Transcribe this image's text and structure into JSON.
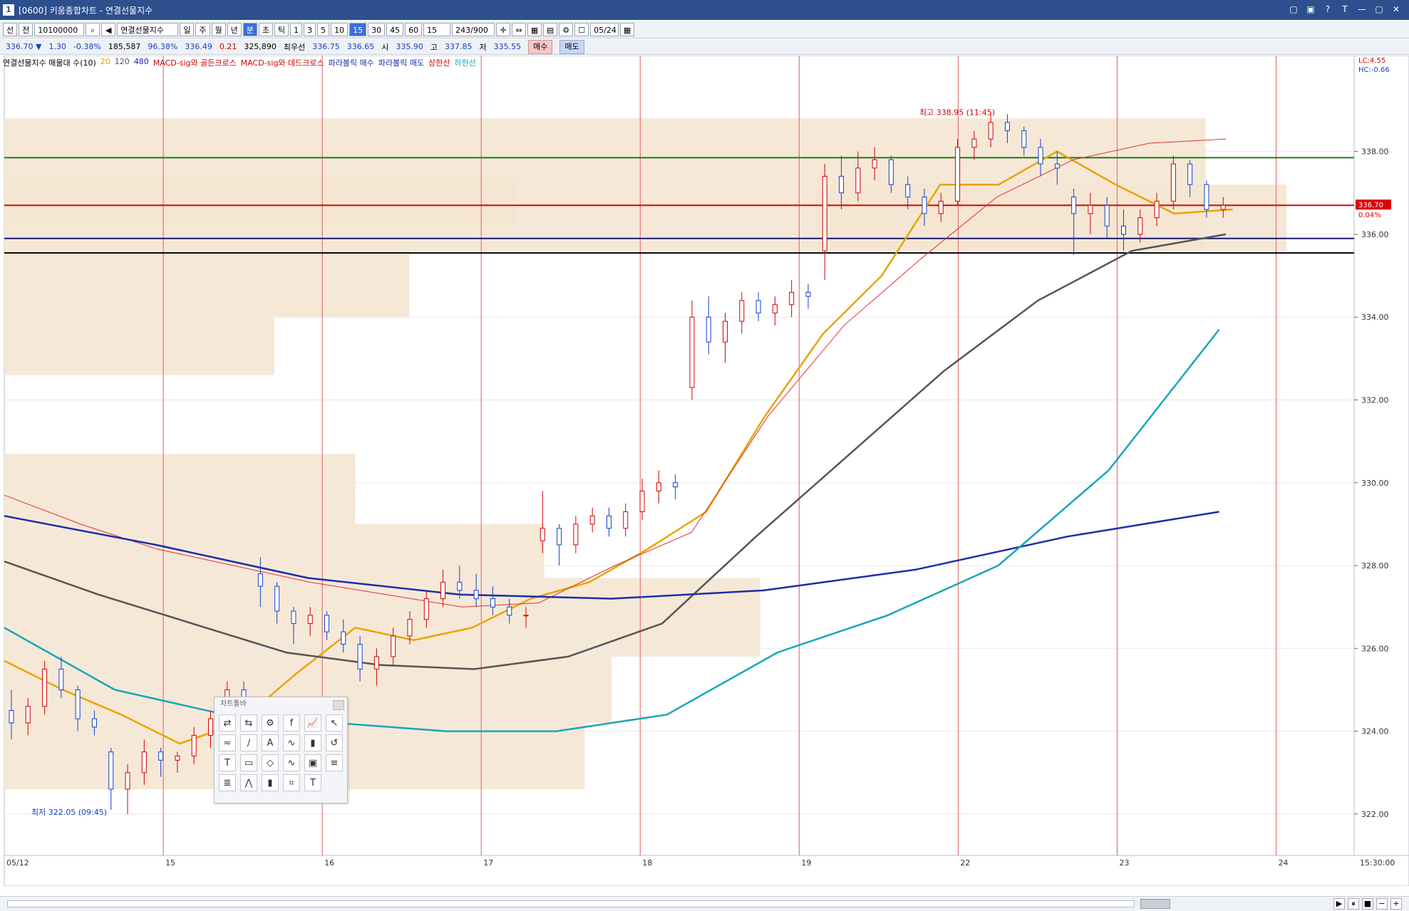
{
  "window": {
    "badge": "1",
    "title": "[0600] 키움종합차트 - 연결선물지수",
    "controls": [
      "▢",
      "▣",
      "?",
      "T",
      "—",
      "▢",
      "✕"
    ]
  },
  "toolbar": {
    "type_select": "선",
    "prev_label": "전",
    "code_value": "10100000",
    "product_name": "연결선물지수",
    "periods": [
      "일",
      "주",
      "월",
      "년",
      "분",
      "초",
      "틱"
    ],
    "selected_period": "분",
    "intervals": [
      "1",
      "3",
      "5",
      "10",
      "15",
      "30",
      "45",
      "60"
    ],
    "selected_interval": "15",
    "interval_select": "15",
    "count": "243/900",
    "date": "05/24"
  },
  "quote": {
    "price": "336.70 ▼",
    "change": "1.30",
    "change_pct": "-0.38%",
    "volume": "185,587",
    "vol_ratio": "96.38%",
    "open_prev": "336.49",
    "diff": "0.21",
    "oi": "325,890",
    "best_bid_label": "최우선",
    "best_bid": "336.75",
    "best_ask": "336.65",
    "open_label": "시",
    "open": "335.90",
    "high_label": "고",
    "high": "337.85",
    "low_label": "저",
    "low": "335.55",
    "buy_label": "매수",
    "sell_label": "매도"
  },
  "legend": {
    "ma_label": "연결선물지수 매물대 수(10)",
    "ma20": "20",
    "ma120": "120",
    "ma480": "480",
    "macd_golden": "MACD-sig와 골든크로스",
    "macd_dead": "MACD-sig와 데드크로스",
    "parabolic_buy": "파라볼릭 매수",
    "parabolic_sell": "파라볼릭 매도",
    "upper": "상한선",
    "lower": "하한선"
  },
  "right_info": {
    "lc": "LC:4.55",
    "hc": "HC:-0.66",
    "last_price": "336.70",
    "last_pct": "0.04%"
  },
  "annotations": {
    "high_text": "최고 338.95 (11:45)",
    "low_text": "최저 322.05 (09:45)"
  },
  "chart_data": {
    "type": "candlestick",
    "y_ticks": [
      "338.00",
      "336.00",
      "334.00",
      "332.00",
      "330.00",
      "328.00",
      "326.00",
      "324.00",
      "322.00"
    ],
    "ylim": [
      321.0,
      339.8
    ],
    "x_labels": [
      "05/12",
      "15",
      "16",
      "17",
      "18",
      "19",
      "22",
      "23",
      "24"
    ],
    "x_end_label": "15:30:00",
    "horizontal_lines": [
      {
        "name": "green-level",
        "value": 337.85,
        "color": "#1c7a1c"
      },
      {
        "name": "red-level",
        "value": 336.7,
        "color": "#e00000"
      },
      {
        "name": "navy-level",
        "value": 335.9,
        "color": "#1a1a6e"
      },
      {
        "name": "black-level",
        "value": 335.55,
        "color": "#000000"
      }
    ],
    "series": [
      {
        "name": "20",
        "color": "#e8a400",
        "values": [
          325.7,
          325.0,
          324.4,
          323.7,
          324.2,
          325.4,
          326.5,
          326.2,
          326.5,
          327.2,
          327.6,
          328.4,
          329.3,
          331.6,
          333.6,
          335.0,
          337.2,
          337.2,
          338.0,
          337.2,
          336.5,
          336.6
        ]
      },
      {
        "name": "120",
        "color": "#e03030",
        "values": [
          329.7,
          329.0,
          328.4,
          328.0,
          327.6,
          327.3,
          327.0,
          327.1,
          328.0,
          328.8,
          331.6,
          333.8,
          335.4,
          336.9,
          337.8,
          338.2,
          338.3
        ]
      },
      {
        "name": "480",
        "color": "#555555",
        "values": [
          328.1,
          327.3,
          326.6,
          325.9,
          325.6,
          325.5,
          325.8,
          326.6,
          328.7,
          330.7,
          332.7,
          334.4,
          335.6,
          336.0
        ]
      },
      {
        "name": "upper",
        "color": "#1a2ea8",
        "values": [
          329.2,
          328.5,
          327.7,
          327.3,
          327.2,
          327.4,
          327.9,
          328.7,
          329.3
        ]
      },
      {
        "name": "lower",
        "color": "#18a6b8",
        "values": [
          326.5,
          325.0,
          324.4,
          324.2,
          324.0,
          324.0,
          324.4,
          325.9,
          326.8,
          328.0,
          330.3,
          333.7
        ]
      }
    ],
    "candles": [
      [
        324.5,
        325.0,
        323.8,
        324.2
      ],
      [
        324.2,
        324.8,
        323.9,
        324.6
      ],
      [
        324.6,
        325.7,
        324.4,
        325.5
      ],
      [
        325.5,
        325.8,
        324.8,
        325.0
      ],
      [
        325.0,
        325.1,
        324.0,
        324.3
      ],
      [
        324.3,
        324.5,
        323.9,
        324.1
      ],
      [
        323.5,
        323.6,
        322.1,
        322.6
      ],
      [
        322.6,
        323.2,
        322.0,
        323.0
      ],
      [
        323.0,
        323.8,
        322.7,
        323.5
      ],
      [
        323.5,
        323.6,
        322.9,
        323.3
      ],
      [
        323.3,
        323.5,
        323.0,
        323.4
      ],
      [
        323.4,
        324.1,
        323.2,
        323.9
      ],
      [
        323.9,
        324.5,
        323.6,
        324.3
      ],
      [
        324.3,
        325.2,
        324.1,
        325.0
      ],
      [
        325.0,
        325.2,
        324.4,
        324.5
      ],
      [
        327.8,
        328.2,
        327.0,
        327.5
      ],
      [
        327.5,
        327.6,
        326.6,
        326.9
      ],
      [
        326.9,
        327.0,
        326.1,
        326.6
      ],
      [
        326.6,
        327.0,
        326.3,
        326.8
      ],
      [
        326.8,
        326.9,
        326.2,
        326.4
      ],
      [
        326.4,
        326.7,
        325.9,
        326.1
      ],
      [
        326.1,
        326.3,
        325.2,
        325.5
      ],
      [
        325.5,
        326.0,
        325.1,
        325.8
      ],
      [
        325.8,
        326.5,
        325.6,
        326.3
      ],
      [
        326.3,
        326.9,
        326.1,
        326.7
      ],
      [
        326.7,
        327.4,
        326.5,
        327.2
      ],
      [
        327.2,
        327.9,
        327.0,
        327.6
      ],
      [
        327.6,
        328.0,
        327.2,
        327.4
      ],
      [
        327.4,
        327.8,
        327.0,
        327.2
      ],
      [
        327.2,
        327.5,
        326.8,
        327.0
      ],
      [
        327.0,
        327.2,
        326.6,
        326.8
      ],
      [
        326.8,
        327.0,
        326.5,
        326.8
      ],
      [
        328.6,
        329.8,
        328.3,
        328.9
      ],
      [
        328.9,
        329.0,
        328.0,
        328.5
      ],
      [
        328.5,
        329.2,
        328.3,
        329.0
      ],
      [
        329.0,
        329.4,
        328.8,
        329.2
      ],
      [
        329.2,
        329.4,
        328.7,
        328.9
      ],
      [
        328.9,
        329.5,
        328.7,
        329.3
      ],
      [
        329.3,
        330.1,
        329.1,
        329.8
      ],
      [
        329.8,
        330.3,
        329.5,
        330.0
      ],
      [
        330.0,
        330.2,
        329.6,
        329.9
      ],
      [
        332.3,
        334.4,
        332.0,
        334.0
      ],
      [
        334.0,
        334.5,
        333.1,
        333.4
      ],
      [
        333.4,
        334.1,
        332.9,
        333.9
      ],
      [
        333.9,
        334.6,
        333.6,
        334.4
      ],
      [
        334.4,
        334.6,
        333.9,
        334.1
      ],
      [
        334.1,
        334.5,
        333.8,
        334.3
      ],
      [
        334.3,
        334.9,
        334.0,
        334.6
      ],
      [
        334.6,
        334.8,
        334.2,
        334.5
      ],
      [
        335.6,
        337.7,
        334.9,
        337.4
      ],
      [
        337.4,
        337.9,
        336.6,
        337.0
      ],
      [
        337.0,
        338.0,
        336.8,
        337.6
      ],
      [
        337.6,
        338.1,
        337.3,
        337.8
      ],
      [
        337.8,
        337.9,
        337.0,
        337.2
      ],
      [
        337.2,
        337.4,
        336.6,
        336.9
      ],
      [
        336.9,
        337.1,
        336.2,
        336.5
      ],
      [
        336.5,
        337.0,
        336.3,
        336.8
      ],
      [
        336.8,
        338.3,
        336.7,
        338.1
      ],
      [
        338.1,
        338.5,
        337.8,
        338.3
      ],
      [
        338.3,
        338.9,
        338.1,
        338.7
      ],
      [
        338.7,
        338.9,
        338.2,
        338.5
      ],
      [
        338.5,
        338.6,
        337.9,
        338.1
      ],
      [
        338.1,
        338.3,
        337.4,
        337.7
      ],
      [
        337.7,
        338.0,
        337.2,
        337.6
      ],
      [
        336.9,
        337.1,
        335.5,
        336.5
      ],
      [
        336.5,
        337.0,
        336.0,
        336.7
      ],
      [
        336.7,
        336.9,
        335.9,
        336.2
      ],
      [
        336.2,
        336.6,
        335.6,
        336.0
      ],
      [
        336.0,
        336.6,
        335.8,
        336.4
      ],
      [
        336.4,
        337.0,
        336.2,
        336.8
      ],
      [
        336.8,
        337.9,
        336.6,
        337.7
      ],
      [
        337.7,
        337.8,
        336.9,
        337.2
      ],
      [
        337.2,
        337.3,
        336.4,
        336.6
      ],
      [
        336.6,
        336.9,
        336.4,
        336.7
      ]
    ]
  },
  "toolbox": {
    "title": "차트툴바",
    "icons": [
      "⇄",
      "⇆",
      "⚙",
      "f",
      "📈",
      "↖",
      "≈",
      "∕",
      "A",
      "∿",
      "▮",
      "↺",
      "T",
      "▭",
      "◇",
      "∿",
      "▣",
      "≡",
      "≣",
      "⋀",
      "▮",
      "⌗",
      "T"
    ]
  }
}
